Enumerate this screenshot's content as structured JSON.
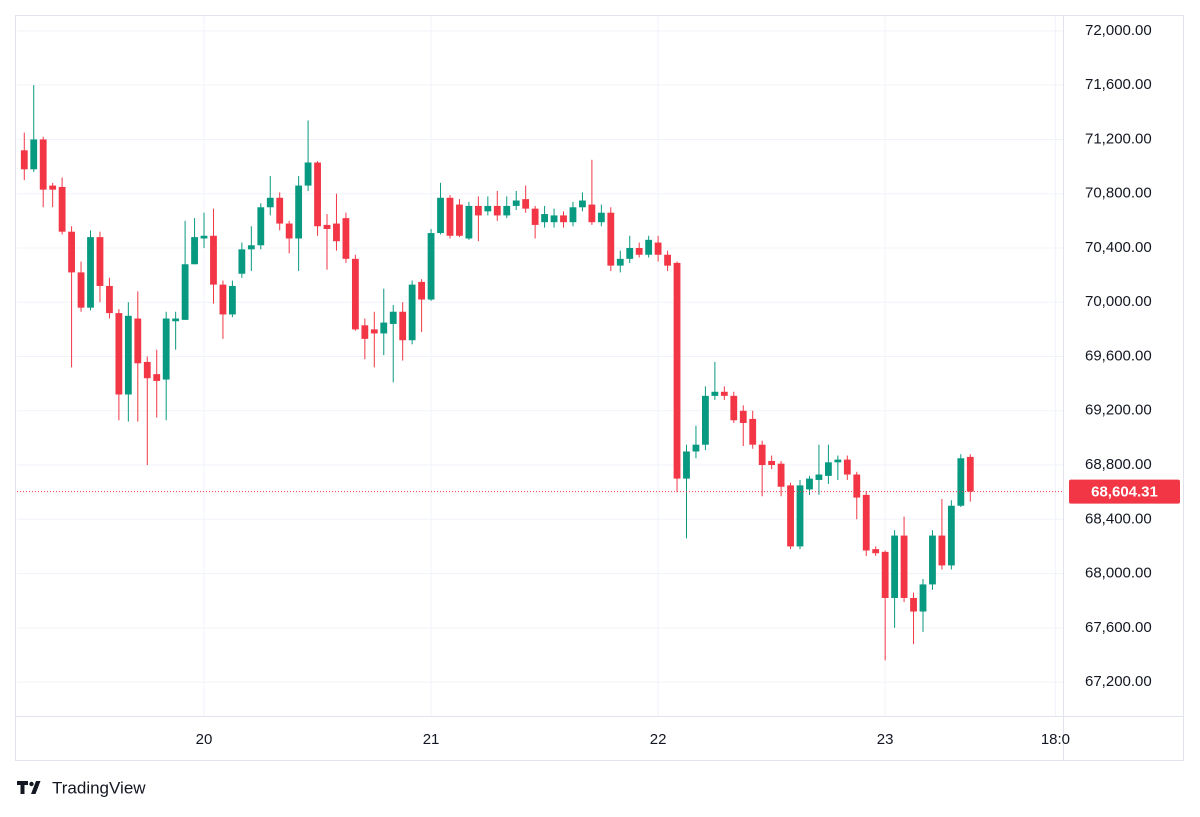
{
  "chart_data": {
    "type": "candlestick",
    "brand": "TradingView",
    "x": [
      5,
      6,
      7,
      8,
      9,
      10,
      11,
      12,
      13,
      14,
      15,
      16,
      17,
      18,
      19,
      20,
      21,
      22,
      23,
      24,
      25,
      26,
      27,
      28,
      29,
      30,
      31,
      32,
      33,
      34,
      35,
      36,
      37,
      38,
      39,
      40,
      41,
      42,
      43,
      44,
      45,
      46,
      47,
      48,
      49,
      50,
      51,
      52,
      53,
      54,
      55,
      56,
      57,
      58,
      59,
      60,
      61,
      62,
      63,
      64,
      65,
      66,
      67,
      68,
      69,
      70,
      71,
      72,
      73,
      74,
      75,
      76,
      77,
      78,
      79,
      80,
      81,
      82,
      83,
      84,
      85,
      86,
      87,
      88,
      89,
      90,
      91,
      92,
      93,
      94,
      95,
      96,
      97,
      98,
      99,
      100,
      101,
      102,
      103,
      104,
      105
    ],
    "open": [
      71120,
      70980,
      71200,
      70860,
      70850,
      70520,
      70220,
      69960,
      70480,
      70120,
      69920,
      69320,
      69880,
      69560,
      69470,
      69430,
      69860,
      69870,
      70280,
      70470,
      70490,
      70130,
      69910,
      70210,
      70390,
      70420,
      70700,
      70770,
      70580,
      70470,
      70860,
      71030,
      70570,
      70580,
      70620,
      70320,
      69830,
      69800,
      69770,
      69840,
      69930,
      69720,
      70150,
      70020,
      70510,
      70770,
      70720,
      70470,
      70710,
      70670,
      70710,
      70640,
      70710,
      70760,
      70690,
      70590,
      70590,
      70640,
      70590,
      70700,
      70720,
      70590,
      70660,
      70270,
      70320,
      70400,
      70350,
      70440,
      70350,
      70290,
      68700,
      68900,
      68950,
      69310,
      69340,
      69310,
      69200,
      69140,
      68950,
      68830,
      68810,
      68650,
      68200,
      68620,
      68690,
      68720,
      68820,
      68840,
      68730,
      68580,
      68180,
      68160,
      67820,
      68280,
      67820,
      67720,
      67920,
      68280,
      68060,
      68500,
      68860
    ],
    "high": [
      71250,
      71600,
      71220,
      70880,
      70920,
      70560,
      70300,
      70530,
      70520,
      70180,
      69950,
      70000,
      70080,
      69600,
      69650,
      69930,
      69930,
      70600,
      70620,
      70660,
      70690,
      70160,
      70160,
      70440,
      70560,
      70730,
      70930,
      70810,
      70600,
      70930,
      71340,
      71040,
      70650,
      70800,
      70660,
      70350,
      69880,
      69930,
      70100,
      69980,
      70000,
      70160,
      70170,
      70540,
      70880,
      70790,
      70760,
      70740,
      70780,
      70780,
      70820,
      70780,
      70820,
      70860,
      70710,
      70710,
      70690,
      70670,
      70740,
      70810,
      71050,
      70720,
      70700,
      70380,
      70490,
      70440,
      70490,
      70490,
      70380,
      70300,
      68950,
      69090,
      69380,
      69560,
      69380,
      69340,
      69240,
      69200,
      68980,
      68870,
      68830,
      68670,
      68690,
      68720,
      68950,
      68950,
      68870,
      68870,
      68750,
      68610,
      68200,
      68170,
      68320,
      68420,
      67860,
      67960,
      68320,
      68550,
      68540,
      68880,
      68880
    ],
    "low": [
      70900,
      70960,
      70700,
      70700,
      70500,
      69520,
      69930,
      69940,
      70000,
      69880,
      69130,
      69120,
      69120,
      68800,
      69150,
      69130,
      69650,
      69870,
      70280,
      70400,
      69990,
      69730,
      69890,
      70180,
      70230,
      70390,
      70640,
      70530,
      70360,
      70230,
      70820,
      70490,
      70240,
      70380,
      70290,
      69790,
      69580,
      69520,
      69610,
      69410,
      69570,
      69690,
      69780,
      70010,
      70500,
      70470,
      70480,
      70460,
      70450,
      70640,
      70600,
      70620,
      70680,
      70660,
      70470,
      70550,
      70550,
      70550,
      70560,
      70670,
      70570,
      70560,
      70230,
      70220,
      70290,
      70330,
      70330,
      70300,
      70230,
      68600,
      68260,
      68850,
      68910,
      69280,
      69280,
      69110,
      68940,
      68920,
      68570,
      68770,
      68570,
      68180,
      68180,
      68580,
      68580,
      68660,
      68690,
      68690,
      68400,
      68130,
      68130,
      67360,
      67600,
      67790,
      67480,
      67570,
      67880,
      68030,
      68030,
      68490,
      68530
    ],
    "close": [
      70980,
      71200,
      70830,
      70830,
      70520,
      70220,
      69960,
      70480,
      70120,
      69920,
      69320,
      69900,
      69550,
      69440,
      69420,
      69880,
      69880,
      70280,
      70480,
      70490,
      70130,
      69910,
      70120,
      70390,
      70420,
      70700,
      70770,
      70580,
      70470,
      70860,
      71030,
      70560,
      70540,
      70450,
      70320,
      69800,
      69730,
      69770,
      69850,
      69930,
      69720,
      70130,
      70020,
      70510,
      70770,
      70490,
      70490,
      70710,
      70640,
      70710,
      70640,
      70710,
      70750,
      70690,
      70570,
      70650,
      70640,
      70590,
      70700,
      70750,
      70590,
      70660,
      70270,
      70320,
      70400,
      70350,
      70460,
      70350,
      70270,
      68700,
      68900,
      68950,
      69310,
      69340,
      69310,
      69130,
      69110,
      68950,
      68800,
      68800,
      68640,
      68200,
      68650,
      68700,
      68730,
      68820,
      68840,
      68730,
      68560,
      68170,
      68150,
      67820,
      68280,
      67820,
      67720,
      67920,
      68280,
      68060,
      68500,
      68850,
      68604.31
    ],
    "up_color": "#089981",
    "down_color": "#f23645",
    "last_price": {
      "value": 68604.31,
      "label": "68,604.31"
    },
    "xlim": [
      4.23,
      114.8
    ],
    "xticks": [
      {
        "value": 24,
        "label": "20"
      },
      {
        "value": 48,
        "label": "21"
      },
      {
        "value": 72,
        "label": "22"
      },
      {
        "value": 96,
        "label": "23"
      },
      {
        "value": 114,
        "label": "18:0"
      }
    ],
    "ylim": [
      66950,
      72110
    ],
    "yticks": [
      {
        "value": 67200,
        "label": "67,200.00"
      },
      {
        "value": 67600,
        "label": "67,600.00"
      },
      {
        "value": 68000,
        "label": "68,000.00"
      },
      {
        "value": 68400,
        "label": "68,400.00"
      },
      {
        "value": 68800,
        "label": "68,800.00"
      },
      {
        "value": 69200,
        "label": "69,200.00"
      },
      {
        "value": 69600,
        "label": "69,600.00"
      },
      {
        "value": 70000,
        "label": "70,000.00"
      },
      {
        "value": 70400,
        "label": "70,400.00"
      },
      {
        "value": 70800,
        "label": "70,800.00"
      },
      {
        "value": 71200,
        "label": "71,200.00"
      },
      {
        "value": 71600,
        "label": "71,600.00"
      },
      {
        "value": 72000,
        "label": "72,000.00"
      }
    ],
    "grid": true
  }
}
